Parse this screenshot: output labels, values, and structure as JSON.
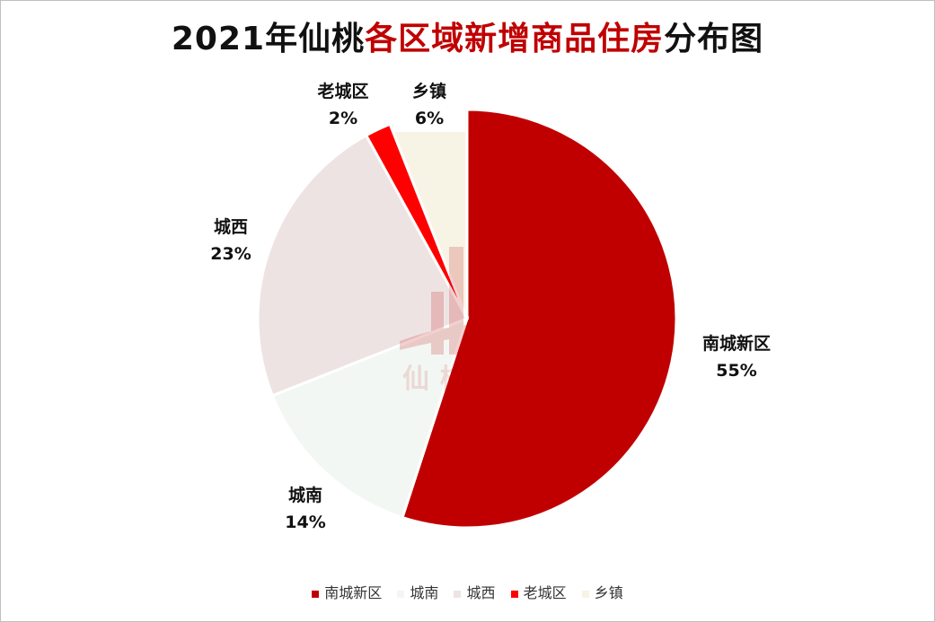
{
  "title": {
    "part1": "2021年仙桃",
    "part2": "各区域新增商品住房",
    "part3": "分布图"
  },
  "watermark_text": "仙桃住房",
  "chart_data": {
    "type": "pie",
    "title": "2021年仙桃各区域新增商品住房分布图",
    "slices": [
      {
        "name": "南城新区",
        "value": 55,
        "label": "55%",
        "color": "#c00000"
      },
      {
        "name": "城南",
        "value": 14,
        "label": "14%",
        "color": "#f2f7f3"
      },
      {
        "name": "城西",
        "value": 23,
        "label": "23%",
        "color": "#eee3e3"
      },
      {
        "name": "老城区",
        "value": 2,
        "label": "2%",
        "color": "#ff0000"
      },
      {
        "name": "乡镇",
        "value": 6,
        "label": "6%",
        "color": "#f7f4e6"
      }
    ],
    "legend_position": "bottom"
  }
}
